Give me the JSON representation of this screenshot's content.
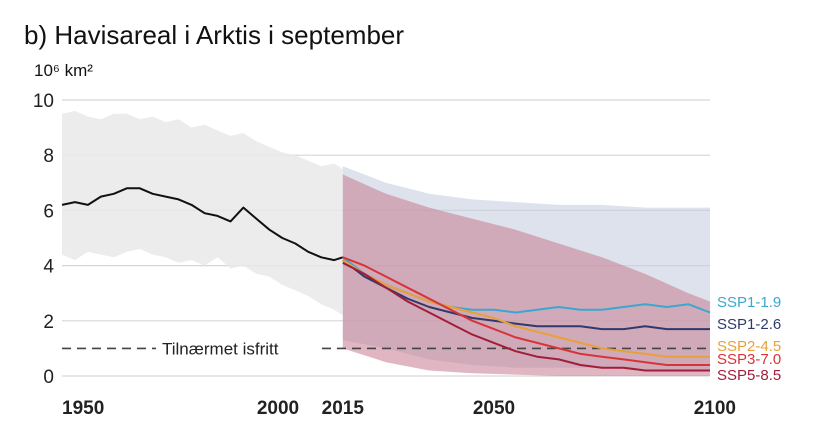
{
  "chart_data": {
    "type": "line",
    "title": "b) Havisareal i Arktis i september",
    "ylabel": "10⁶ km²",
    "xlabel": "",
    "xlim": [
      1950,
      2100
    ],
    "ylim": [
      0,
      10
    ],
    "yticks": [
      "0",
      "2",
      "4",
      "6",
      "8",
      "10"
    ],
    "yticks_values": [
      0,
      2,
      4,
      6,
      8,
      10
    ],
    "xticks": [
      "1950",
      "2000",
      "2015",
      "2050",
      "2100"
    ],
    "xticks_values": [
      1950,
      2000,
      2015,
      2050,
      2100
    ],
    "grid": true,
    "reference_line": {
      "y": 1,
      "label": "Tilnærmet isfritt",
      "color": "#444444"
    },
    "historical": {
      "color": "#111111",
      "band_color": "#e9e9e9",
      "x": [
        1950,
        1953,
        1956,
        1959,
        1962,
        1965,
        1968,
        1971,
        1974,
        1977,
        1980,
        1983,
        1986,
        1989,
        1992,
        1995,
        1998,
        2001,
        2004,
        2007,
        2010,
        2013,
        2015
      ],
      "values": [
        6.2,
        6.3,
        6.2,
        6.5,
        6.6,
        6.8,
        6.8,
        6.6,
        6.5,
        6.4,
        6.2,
        5.9,
        5.8,
        5.6,
        6.1,
        5.7,
        5.3,
        5.0,
        4.8,
        4.5,
        4.3,
        4.2,
        4.3
      ],
      "band_upper": [
        9.5,
        9.6,
        9.4,
        9.3,
        9.5,
        9.5,
        9.3,
        9.4,
        9.2,
        9.3,
        9.0,
        9.1,
        8.9,
        8.7,
        8.8,
        8.5,
        8.3,
        8.1,
        8.0,
        7.8,
        7.6,
        7.7,
        7.5
      ],
      "band_lower": [
        4.4,
        4.2,
        4.5,
        4.4,
        4.3,
        4.5,
        4.6,
        4.4,
        4.3,
        4.1,
        4.2,
        4.0,
        4.3,
        3.9,
        4.0,
        3.7,
        3.6,
        3.3,
        3.1,
        2.9,
        2.6,
        2.4,
        2.2
      ]
    },
    "projection_bands": [
      {
        "name": "SSP1-2.6 range",
        "color": "#c6cfe0",
        "x": [
          2015,
          2025,
          2035,
          2045,
          2055,
          2065,
          2075,
          2085,
          2095,
          2100
        ],
        "upper": [
          7.6,
          7.0,
          6.6,
          6.4,
          6.3,
          6.2,
          6.2,
          6.1,
          6.1,
          6.1
        ],
        "lower": [
          1.3,
          1.0,
          0.6,
          0.4,
          0.3,
          0.3,
          0.3,
          0.2,
          0.2,
          0.2
        ]
      },
      {
        "name": "SSP5-8.5 range",
        "color": "#c98597",
        "x": [
          2015,
          2025,
          2035,
          2045,
          2055,
          2065,
          2075,
          2085,
          2095,
          2100
        ],
        "upper": [
          7.3,
          6.6,
          6.1,
          5.7,
          5.3,
          4.8,
          4.3,
          3.7,
          3.0,
          2.7
        ],
        "lower": [
          1.0,
          0.5,
          0.2,
          0.1,
          0.05,
          0.0,
          0.0,
          0.0,
          0.0,
          0.0
        ]
      }
    ],
    "series": [
      {
        "name": "SSP1-1.9",
        "color": "#3aa7cf",
        "x": [
          2015,
          2020,
          2025,
          2030,
          2035,
          2040,
          2045,
          2050,
          2055,
          2060,
          2065,
          2070,
          2075,
          2080,
          2085,
          2090,
          2095,
          2100
        ],
        "values": [
          4.3,
          3.7,
          3.3,
          3.0,
          2.7,
          2.5,
          2.4,
          2.4,
          2.3,
          2.4,
          2.5,
          2.4,
          2.4,
          2.5,
          2.6,
          2.5,
          2.6,
          2.3
        ]
      },
      {
        "name": "SSP1-2.6",
        "color": "#2f3a6b",
        "x": [
          2015,
          2020,
          2025,
          2030,
          2035,
          2040,
          2045,
          2050,
          2055,
          2060,
          2065,
          2070,
          2075,
          2080,
          2085,
          2090,
          2095,
          2100
        ],
        "values": [
          4.2,
          3.6,
          3.2,
          2.8,
          2.5,
          2.3,
          2.1,
          2.0,
          1.9,
          1.8,
          1.8,
          1.8,
          1.7,
          1.7,
          1.8,
          1.7,
          1.7,
          1.7
        ]
      },
      {
        "name": "SSP2-4.5",
        "color": "#e8a03a",
        "x": [
          2015,
          2020,
          2025,
          2030,
          2035,
          2040,
          2045,
          2050,
          2055,
          2060,
          2065,
          2070,
          2075,
          2080,
          2085,
          2090,
          2095,
          2100
        ],
        "values": [
          4.2,
          3.7,
          3.3,
          3.0,
          2.7,
          2.5,
          2.3,
          2.1,
          1.8,
          1.6,
          1.4,
          1.2,
          1.0,
          0.9,
          0.8,
          0.7,
          0.7,
          0.7
        ]
      },
      {
        "name": "SSP3-7.0",
        "color": "#d7343a",
        "x": [
          2015,
          2020,
          2025,
          2030,
          2035,
          2040,
          2045,
          2050,
          2055,
          2060,
          2065,
          2070,
          2075,
          2080,
          2085,
          2090,
          2095,
          2100
        ],
        "values": [
          4.3,
          4.0,
          3.6,
          3.2,
          2.8,
          2.4,
          2.0,
          1.7,
          1.4,
          1.2,
          1.0,
          0.8,
          0.7,
          0.6,
          0.5,
          0.4,
          0.4,
          0.4
        ]
      },
      {
        "name": "SSP5-8.5",
        "color": "#a11e3a",
        "x": [
          2015,
          2020,
          2025,
          2030,
          2035,
          2040,
          2045,
          2050,
          2055,
          2060,
          2065,
          2070,
          2075,
          2080,
          2085,
          2090,
          2095,
          2100
        ],
        "values": [
          4.1,
          3.7,
          3.2,
          2.7,
          2.3,
          1.9,
          1.5,
          1.2,
          0.9,
          0.7,
          0.6,
          0.4,
          0.3,
          0.3,
          0.2,
          0.2,
          0.2,
          0.2
        ]
      }
    ]
  }
}
